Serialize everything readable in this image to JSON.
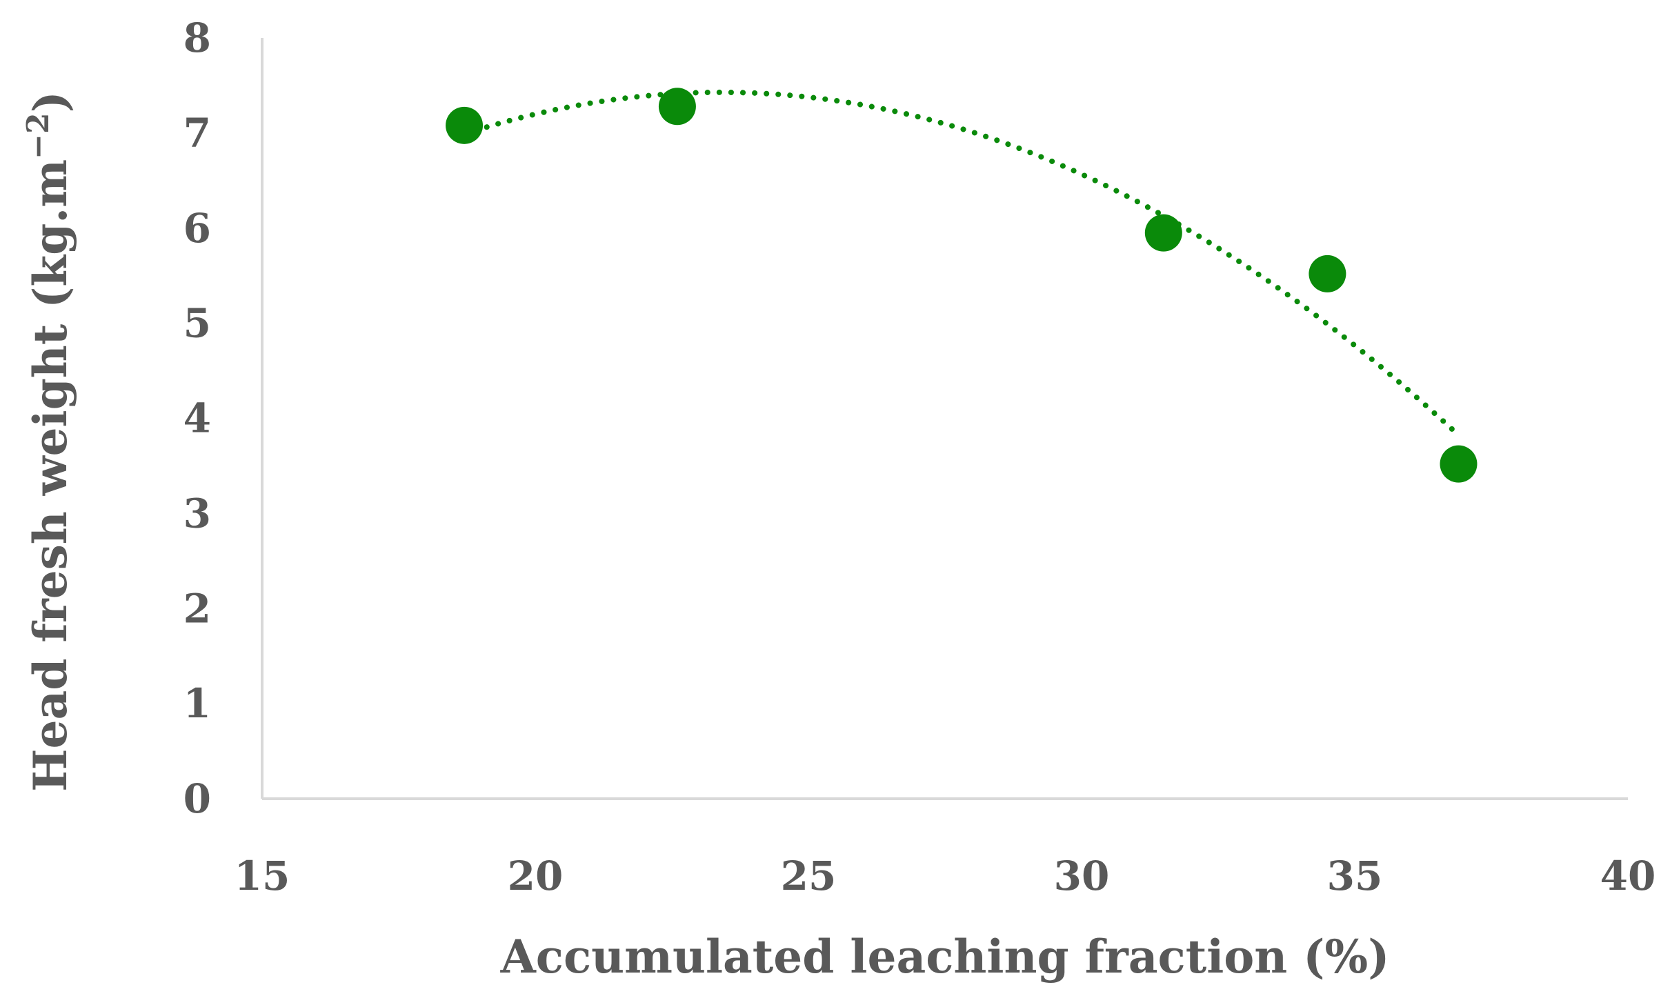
{
  "chart_data": {
    "type": "scatter",
    "title": "",
    "xlabel": "Accumulated leaching fraction (%)",
    "ylabel": "Head fresh weight (kg.m−2)",
    "ylabel_parts": {
      "main": "Head fresh weight (kg.m",
      "sup": "−2",
      "close": ")"
    },
    "xlim": [
      15,
      40
    ],
    "ylim": [
      0,
      8
    ],
    "x_ticks": [
      "15",
      "20",
      "25",
      "30",
      "35",
      "40"
    ],
    "y_ticks": [
      "0",
      "1",
      "2",
      "3",
      "4",
      "5",
      "6",
      "7",
      "8"
    ],
    "grid": false,
    "legend": "none",
    "series": [
      {
        "marker_color": "#0a8a0a",
        "points": [
          {
            "x": 18.7,
            "y": 7.08
          },
          {
            "x": 22.6,
            "y": 7.28
          },
          {
            "x": 31.5,
            "y": 5.95
          },
          {
            "x": 34.5,
            "y": 5.52
          },
          {
            "x": 36.9,
            "y": 3.52
          }
        ],
        "trendline": {
          "type": "polynomial-2",
          "style": "dotted",
          "color": "#0a8a0a",
          "x_range": [
            18.7,
            36.9
          ]
        }
      }
    ]
  }
}
